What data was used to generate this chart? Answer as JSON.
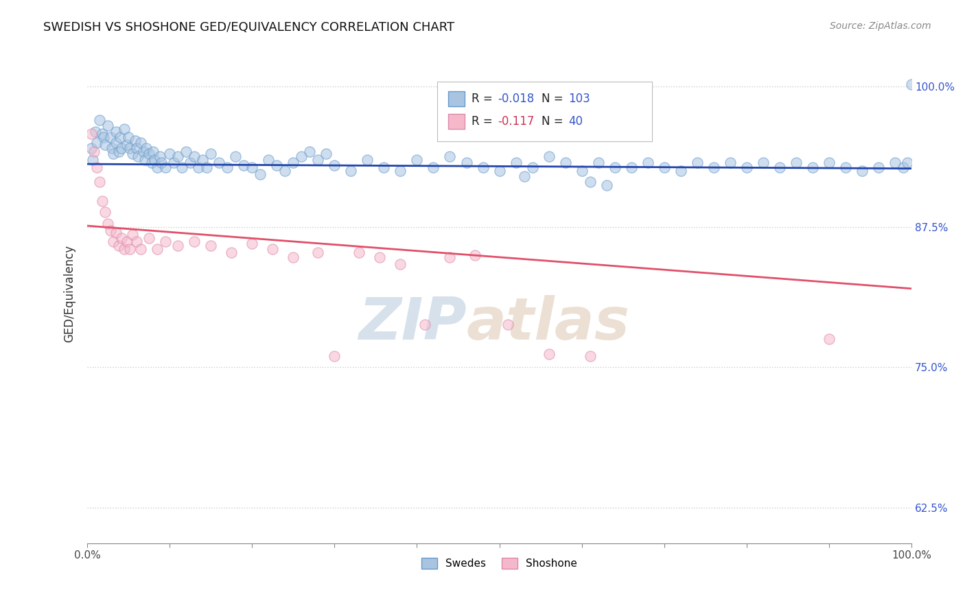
{
  "title": "SWEDISH VS SHOSHONE GED/EQUIVALENCY CORRELATION CHART",
  "source": "Source: ZipAtlas.com",
  "ylabel": "GED/Equivalency",
  "blue_R": -0.018,
  "blue_N": 103,
  "pink_R": -0.117,
  "pink_N": 40,
  "blue_face": "#a8c4e0",
  "blue_edge": "#6699cc",
  "pink_face": "#f5b8cb",
  "pink_edge": "#dd88aa",
  "blue_line": "#2244aa",
  "pink_line": "#e0506a",
  "legend_blue": "#3355cc",
  "legend_pink": "#cc3355",
  "legend_N_blue": "#3355cc",
  "ytick_color": "#3355cc",
  "xmin": 0.0,
  "xmax": 1.0,
  "ymin": 0.593,
  "ymax": 1.038,
  "ytick_vals": [
    0.625,
    0.75,
    0.875,
    1.0
  ],
  "ytick_labels": [
    "62.5%",
    "75.0%",
    "87.5%",
    "100.0%"
  ],
  "blue_trend_y0": 0.931,
  "blue_trend_y1": 0.927,
  "pink_trend_y0": 0.876,
  "pink_trend_y1": 0.82,
  "dot_size": 120,
  "blue_x": [
    0.005,
    0.007,
    0.01,
    0.012,
    0.015,
    0.018,
    0.02,
    0.022,
    0.025,
    0.028,
    0.03,
    0.032,
    0.035,
    0.035,
    0.038,
    0.04,
    0.042,
    0.045,
    0.048,
    0.05,
    0.052,
    0.055,
    0.058,
    0.06,
    0.062,
    0.065,
    0.068,
    0.07,
    0.072,
    0.075,
    0.078,
    0.08,
    0.082,
    0.085,
    0.088,
    0.09,
    0.095,
    0.1,
    0.105,
    0.11,
    0.115,
    0.12,
    0.125,
    0.13,
    0.135,
    0.14,
    0.145,
    0.15,
    0.16,
    0.17,
    0.18,
    0.19,
    0.2,
    0.21,
    0.22,
    0.23,
    0.24,
    0.25,
    0.26,
    0.27,
    0.28,
    0.29,
    0.3,
    0.32,
    0.34,
    0.36,
    0.38,
    0.4,
    0.42,
    0.44,
    0.46,
    0.48,
    0.5,
    0.52,
    0.54,
    0.56,
    0.58,
    0.6,
    0.62,
    0.64,
    0.66,
    0.68,
    0.7,
    0.72,
    0.74,
    0.76,
    0.78,
    0.8,
    0.82,
    0.84,
    0.86,
    0.88,
    0.9,
    0.92,
    0.94,
    0.96,
    0.98,
    0.99,
    0.995,
    1.0,
    0.53,
    0.61,
    0.63
  ],
  "blue_y": [
    0.945,
    0.935,
    0.96,
    0.95,
    0.97,
    0.958,
    0.955,
    0.948,
    0.965,
    0.955,
    0.945,
    0.94,
    0.96,
    0.95,
    0.942,
    0.955,
    0.945,
    0.962,
    0.948,
    0.955,
    0.945,
    0.94,
    0.952,
    0.945,
    0.938,
    0.95,
    0.942,
    0.935,
    0.945,
    0.94,
    0.932,
    0.942,
    0.935,
    0.928,
    0.938,
    0.932,
    0.928,
    0.94,
    0.932,
    0.938,
    0.928,
    0.942,
    0.932,
    0.938,
    0.928,
    0.935,
    0.928,
    0.94,
    0.932,
    0.928,
    0.938,
    0.93,
    0.928,
    0.922,
    0.935,
    0.93,
    0.925,
    0.932,
    0.938,
    0.942,
    0.935,
    0.94,
    0.93,
    0.925,
    0.935,
    0.928,
    0.925,
    0.935,
    0.928,
    0.938,
    0.932,
    0.928,
    0.925,
    0.932,
    0.928,
    0.938,
    0.932,
    0.925,
    0.932,
    0.928,
    0.928,
    0.932,
    0.928,
    0.925,
    0.932,
    0.928,
    0.932,
    0.928,
    0.932,
    0.928,
    0.932,
    0.928,
    0.932,
    0.928,
    0.925,
    0.928,
    0.932,
    0.928,
    0.932,
    1.002,
    0.92,
    0.915,
    0.912
  ],
  "pink_x": [
    0.005,
    0.008,
    0.012,
    0.015,
    0.018,
    0.022,
    0.025,
    0.028,
    0.032,
    0.035,
    0.038,
    0.042,
    0.045,
    0.048,
    0.052,
    0.055,
    0.06,
    0.065,
    0.075,
    0.085,
    0.095,
    0.11,
    0.13,
    0.15,
    0.175,
    0.2,
    0.225,
    0.25,
    0.28,
    0.3,
    0.33,
    0.355,
    0.38,
    0.41,
    0.44,
    0.47,
    0.51,
    0.56,
    0.61,
    0.9
  ],
  "pink_y": [
    0.958,
    0.942,
    0.928,
    0.915,
    0.898,
    0.888,
    0.878,
    0.872,
    0.862,
    0.87,
    0.858,
    0.865,
    0.855,
    0.862,
    0.855,
    0.868,
    0.862,
    0.855,
    0.865,
    0.855,
    0.862,
    0.858,
    0.862,
    0.858,
    0.852,
    0.86,
    0.855,
    0.848,
    0.852,
    0.76,
    0.852,
    0.848,
    0.842,
    0.788,
    0.848,
    0.85,
    0.788,
    0.762,
    0.76,
    0.775
  ]
}
